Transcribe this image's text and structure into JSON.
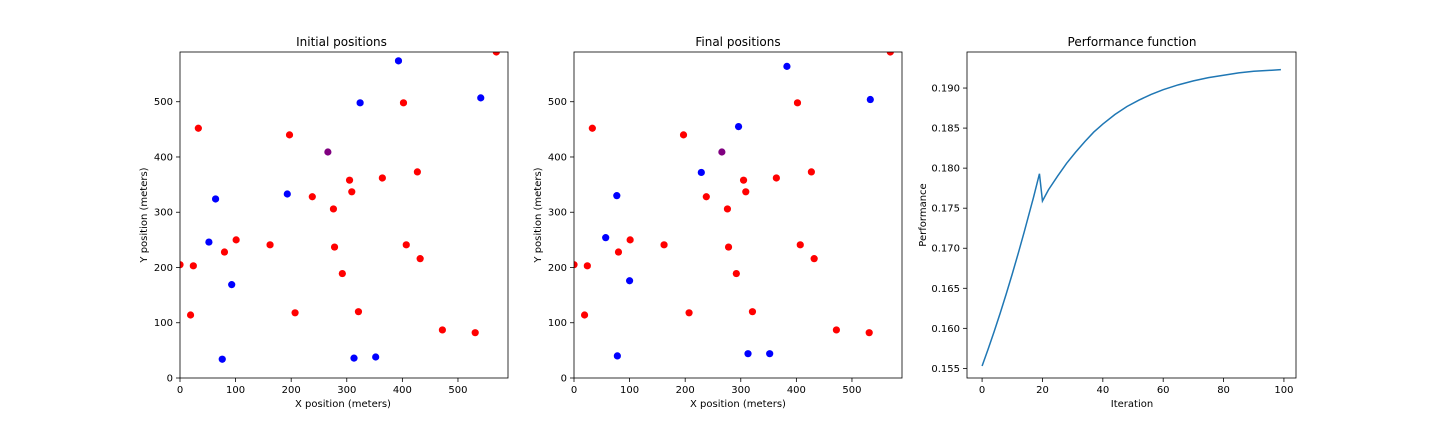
{
  "chart_data": [
    {
      "type": "scatter",
      "title": "Initial positions",
      "xlabel": "X position (meters)",
      "ylabel": "Y position (meters)",
      "xlim": [
        0,
        590
      ],
      "ylim": [
        0,
        590
      ],
      "xticks": [
        0,
        100,
        200,
        300,
        400,
        500
      ],
      "yticks": [
        0,
        100,
        200,
        300,
        400,
        500
      ],
      "grid": false,
      "colors": {
        "red": "#ff0000",
        "blue": "#0000ff",
        "purple": "#800080"
      },
      "points": [
        {
          "x": 0,
          "y": 205,
          "c": "red"
        },
        {
          "x": 19,
          "y": 114,
          "c": "red"
        },
        {
          "x": 24,
          "y": 203,
          "c": "red"
        },
        {
          "x": 33,
          "y": 452,
          "c": "red"
        },
        {
          "x": 80,
          "y": 228,
          "c": "red"
        },
        {
          "x": 101,
          "y": 250,
          "c": "red"
        },
        {
          "x": 162,
          "y": 241,
          "c": "red"
        },
        {
          "x": 197,
          "y": 440,
          "c": "red"
        },
        {
          "x": 207,
          "y": 118,
          "c": "red"
        },
        {
          "x": 238,
          "y": 328,
          "c": "red"
        },
        {
          "x": 276,
          "y": 306,
          "c": "red"
        },
        {
          "x": 278,
          "y": 237,
          "c": "red"
        },
        {
          "x": 292,
          "y": 189,
          "c": "red"
        },
        {
          "x": 305,
          "y": 358,
          "c": "red"
        },
        {
          "x": 309,
          "y": 337,
          "c": "red"
        },
        {
          "x": 321,
          "y": 120,
          "c": "red"
        },
        {
          "x": 364,
          "y": 362,
          "c": "red"
        },
        {
          "x": 402,
          "y": 498,
          "c": "red"
        },
        {
          "x": 407,
          "y": 241,
          "c": "red"
        },
        {
          "x": 427,
          "y": 373,
          "c": "red"
        },
        {
          "x": 432,
          "y": 216,
          "c": "red"
        },
        {
          "x": 472,
          "y": 87,
          "c": "red"
        },
        {
          "x": 531,
          "y": 82,
          "c": "red"
        },
        {
          "x": 569,
          "y": 590,
          "c": "red"
        },
        {
          "x": 266,
          "y": 409,
          "c": "purple"
        },
        {
          "x": 52,
          "y": 246,
          "c": "blue"
        },
        {
          "x": 64,
          "y": 324,
          "c": "blue"
        },
        {
          "x": 76,
          "y": 34,
          "c": "blue"
        },
        {
          "x": 93,
          "y": 169,
          "c": "blue"
        },
        {
          "x": 193,
          "y": 333,
          "c": "blue"
        },
        {
          "x": 313,
          "y": 36,
          "c": "blue"
        },
        {
          "x": 324,
          "y": 498,
          "c": "blue"
        },
        {
          "x": 352,
          "y": 38,
          "c": "blue"
        },
        {
          "x": 393,
          "y": 574,
          "c": "blue"
        },
        {
          "x": 541,
          "y": 507,
          "c": "blue"
        }
      ]
    },
    {
      "type": "scatter",
      "title": "Final positions",
      "xlabel": "X position (meters)",
      "ylabel": "Y position (meters)",
      "xlim": [
        0,
        590
      ],
      "ylim": [
        0,
        590
      ],
      "xticks": [
        0,
        100,
        200,
        300,
        400,
        500
      ],
      "yticks": [
        0,
        100,
        200,
        300,
        400,
        500
      ],
      "grid": false,
      "colors": {
        "red": "#ff0000",
        "blue": "#0000ff",
        "purple": "#800080"
      },
      "points": [
        {
          "x": 0,
          "y": 205,
          "c": "red"
        },
        {
          "x": 19,
          "y": 114,
          "c": "red"
        },
        {
          "x": 24,
          "y": 203,
          "c": "red"
        },
        {
          "x": 33,
          "y": 452,
          "c": "red"
        },
        {
          "x": 80,
          "y": 228,
          "c": "red"
        },
        {
          "x": 101,
          "y": 250,
          "c": "red"
        },
        {
          "x": 162,
          "y": 241,
          "c": "red"
        },
        {
          "x": 197,
          "y": 440,
          "c": "red"
        },
        {
          "x": 207,
          "y": 118,
          "c": "red"
        },
        {
          "x": 238,
          "y": 328,
          "c": "red"
        },
        {
          "x": 276,
          "y": 306,
          "c": "red"
        },
        {
          "x": 278,
          "y": 237,
          "c": "red"
        },
        {
          "x": 292,
          "y": 189,
          "c": "red"
        },
        {
          "x": 305,
          "y": 358,
          "c": "red"
        },
        {
          "x": 309,
          "y": 337,
          "c": "red"
        },
        {
          "x": 321,
          "y": 120,
          "c": "red"
        },
        {
          "x": 364,
          "y": 362,
          "c": "red"
        },
        {
          "x": 402,
          "y": 498,
          "c": "red"
        },
        {
          "x": 407,
          "y": 241,
          "c": "red"
        },
        {
          "x": 427,
          "y": 373,
          "c": "red"
        },
        {
          "x": 432,
          "y": 216,
          "c": "red"
        },
        {
          "x": 472,
          "y": 87,
          "c": "red"
        },
        {
          "x": 531,
          "y": 82,
          "c": "red"
        },
        {
          "x": 569,
          "y": 590,
          "c": "red"
        },
        {
          "x": 266,
          "y": 409,
          "c": "purple"
        },
        {
          "x": 57,
          "y": 254,
          "c": "blue"
        },
        {
          "x": 77,
          "y": 330,
          "c": "blue"
        },
        {
          "x": 78,
          "y": 40,
          "c": "blue"
        },
        {
          "x": 100,
          "y": 176,
          "c": "blue"
        },
        {
          "x": 229,
          "y": 372,
          "c": "blue"
        },
        {
          "x": 296,
          "y": 455,
          "c": "blue"
        },
        {
          "x": 313,
          "y": 44,
          "c": "blue"
        },
        {
          "x": 352,
          "y": 44,
          "c": "blue"
        },
        {
          "x": 383,
          "y": 564,
          "c": "blue"
        },
        {
          "x": 533,
          "y": 504,
          "c": "blue"
        }
      ]
    },
    {
      "type": "line",
      "title": "Performance function",
      "xlabel": "Iteration",
      "ylabel": "Performance",
      "xlim": [
        -5,
        104
      ],
      "ylim": [
        0.1538,
        0.1945
      ],
      "xticks": [
        0,
        20,
        40,
        60,
        80,
        100
      ],
      "yticks": [
        "0.155",
        "0.160",
        "0.165",
        "0.170",
        "0.175",
        "0.180",
        "0.185",
        "0.190"
      ],
      "grid": false,
      "color": "#1f77b4",
      "series": [
        {
          "x": [
            0,
            2,
            4,
            6,
            8,
            10,
            12,
            14,
            16,
            17,
            18,
            19,
            20,
            22,
            25,
            28,
            31,
            34,
            37,
            40,
            44,
            48,
            52,
            56,
            60,
            65,
            70,
            75,
            80,
            85,
            90,
            95,
            99
          ],
          "y": [
            0.1553,
            0.1574,
            0.1596,
            0.1619,
            0.1643,
            0.1668,
            0.1694,
            0.1721,
            0.1749,
            0.1763,
            0.1778,
            0.1793,
            0.1759,
            0.1773,
            0.179,
            0.1806,
            0.182,
            0.1833,
            0.1845,
            0.1855,
            0.1867,
            0.1877,
            0.1885,
            0.1892,
            0.1898,
            0.1904,
            0.1909,
            0.1913,
            0.1916,
            0.1919,
            0.1921,
            0.1922,
            0.1923
          ]
        }
      ]
    }
  ]
}
